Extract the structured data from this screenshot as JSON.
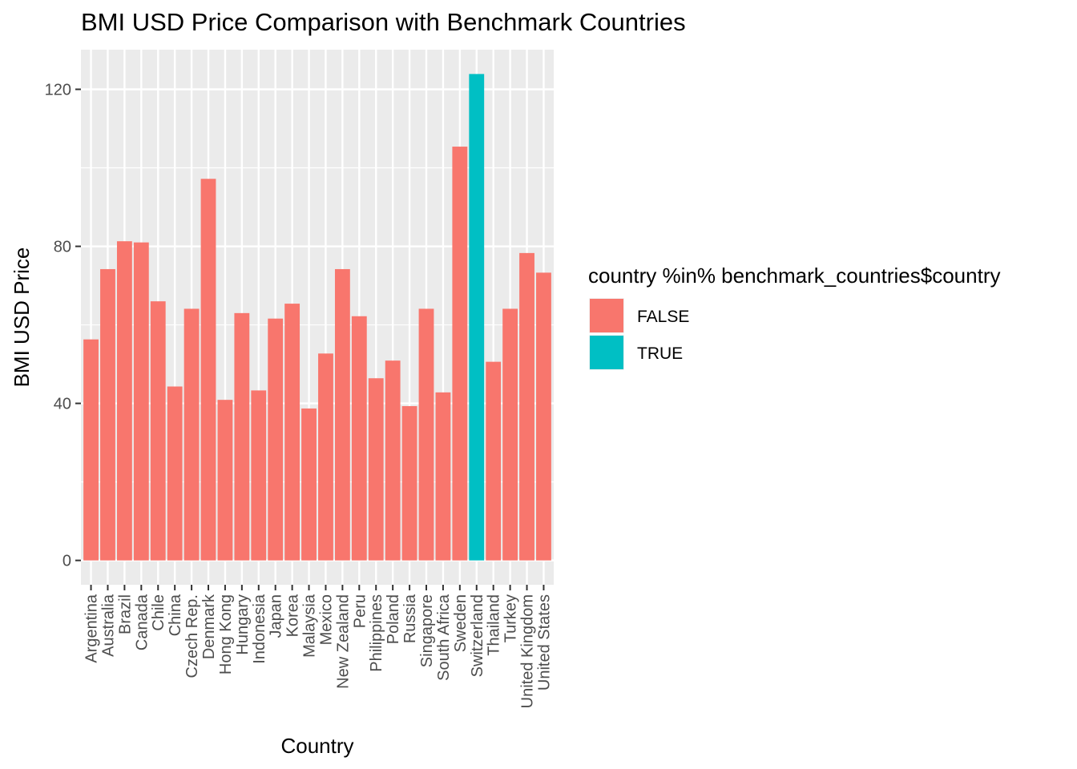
{
  "chart_data": {
    "type": "bar",
    "title": "BMI USD Price Comparison with Benchmark Countries",
    "xlabel": "Country",
    "ylabel": "BMI USD Price",
    "categories": [
      "Argentina",
      "Australia",
      "Brazil",
      "Canada",
      "Chile",
      "China",
      "Czech Rep.",
      "Denmark",
      "Hong Kong",
      "Hungary",
      "Indonesia",
      "Japan",
      "Korea",
      "Malaysia",
      "Mexico",
      "New Zealand",
      "Peru",
      "Philippines",
      "Poland",
      "Russia",
      "Singapore",
      "South Africa",
      "Sweden",
      "Switzerland",
      "Thailand",
      "Turkey",
      "United Kingdom",
      "United States"
    ],
    "values": [
      56.3,
      74.2,
      81.3,
      81.0,
      66.0,
      44.3,
      64.1,
      97.2,
      40.9,
      63.0,
      43.3,
      61.6,
      65.4,
      38.7,
      52.7,
      74.2,
      62.2,
      46.4,
      50.9,
      39.3,
      64.1,
      42.8,
      105.4,
      123.9,
      50.6,
      64.1,
      78.3,
      73.3
    ],
    "highlight": [
      false,
      false,
      false,
      false,
      false,
      false,
      false,
      false,
      false,
      false,
      false,
      false,
      false,
      false,
      false,
      false,
      false,
      false,
      false,
      false,
      false,
      false,
      false,
      true,
      false,
      false,
      false,
      false
    ],
    "ylim": [
      -6.2,
      130.1
    ],
    "yticks": [
      0,
      40,
      80,
      120
    ],
    "grid": true,
    "legend": {
      "title": "country %in% benchmark_countries$country",
      "placement": "right",
      "entries": [
        {
          "label": "FALSE",
          "color": "#F8766D"
        },
        {
          "label": "TRUE",
          "color": "#00BFC4"
        }
      ]
    }
  },
  "colors": {
    "panel_background": "#EBEBEB",
    "grid_line": "#FFFFFF",
    "false_fill": "#F8766D",
    "true_fill": "#00BFC4"
  }
}
